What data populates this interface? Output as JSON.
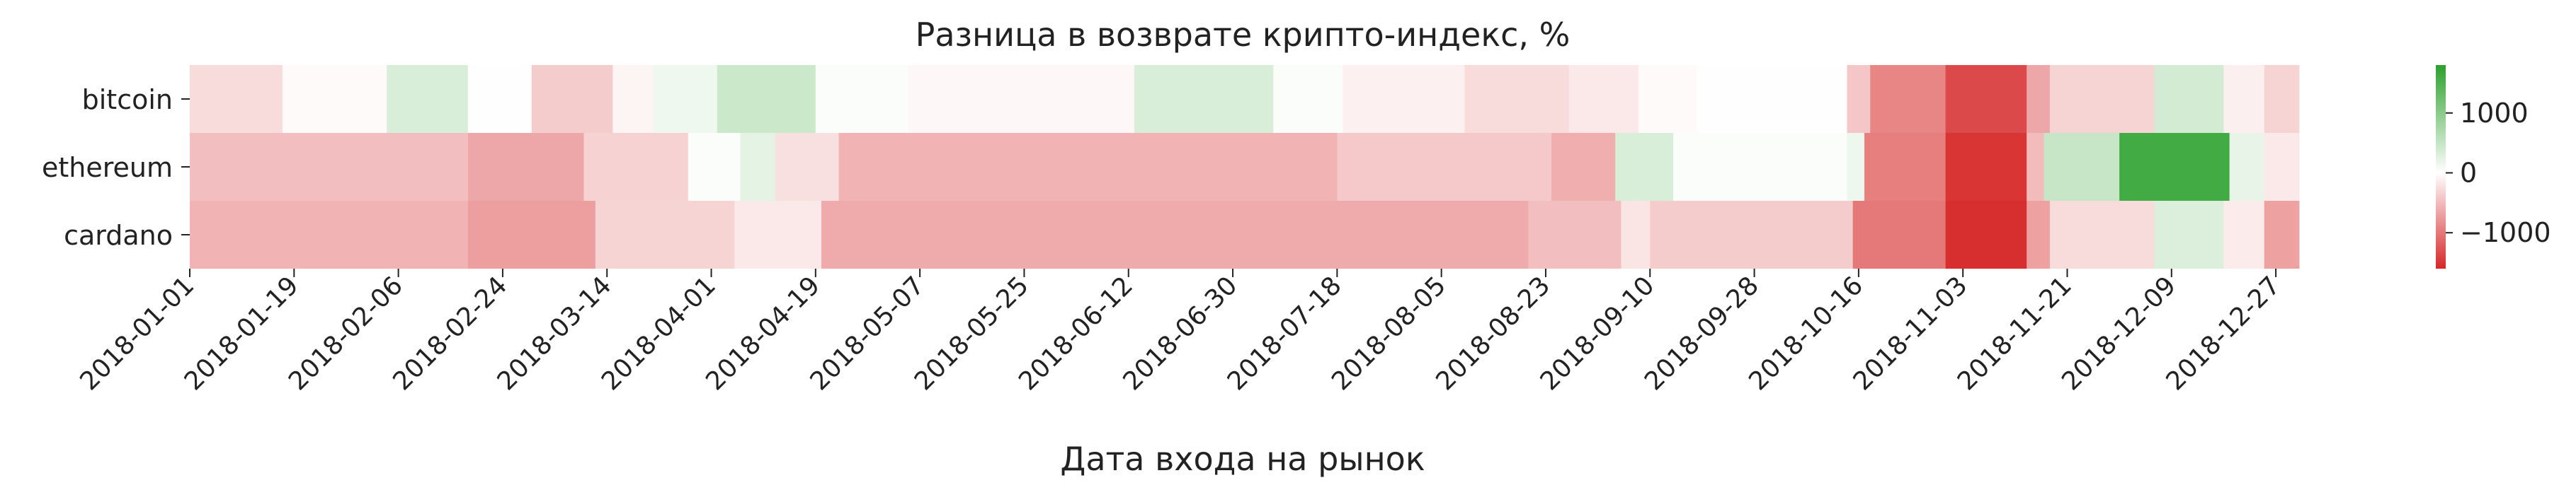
{
  "chart_data": {
    "type": "heatmap",
    "title": "Разница в возврате крипто-индекс, %",
    "xlabel": "Дата входа на рынок",
    "ylabel": "",
    "rows": [
      "bitcoin",
      "ethereum",
      "cardano"
    ],
    "x_tick_labels": [
      "2018-01-01",
      "2018-01-19",
      "2018-02-06",
      "2018-02-24",
      "2018-03-14",
      "2018-04-01",
      "2018-04-19",
      "2018-05-07",
      "2018-05-25",
      "2018-06-12",
      "2018-06-30",
      "2018-07-18",
      "2018-08-05",
      "2018-08-23",
      "2018-09-10",
      "2018-09-28",
      "2018-10-16",
      "2018-11-03",
      "2018-11-21",
      "2018-12-09",
      "2018-12-27"
    ],
    "x_start": "2018-01-01",
    "x_end": "2018-12-31",
    "colorbar": {
      "ticks": [
        1000,
        0,
        -1000
      ],
      "range": [
        -1600,
        1800
      ],
      "position": "right"
    },
    "colors": {
      "negative": "#d62728",
      "neutral": "#ffffff",
      "positive": "#2ca02c"
    },
    "segments": {
      "bitcoin": [
        [
          "2018-01-01",
          "2018-01-17",
          -260
        ],
        [
          "2018-01-17",
          "2018-02-04",
          -40
        ],
        [
          "2018-02-04",
          "2018-02-18",
          330
        ],
        [
          "2018-02-18",
          "2018-03-01",
          10
        ],
        [
          "2018-03-01",
          "2018-03-15",
          -380
        ],
        [
          "2018-03-15",
          "2018-03-22",
          -80
        ],
        [
          "2018-03-22",
          "2018-04-02",
          140
        ],
        [
          "2018-04-02",
          "2018-04-19",
          440
        ],
        [
          "2018-04-19",
          "2018-05-05",
          40
        ],
        [
          "2018-05-05",
          "2018-06-13",
          -60
        ],
        [
          "2018-06-13",
          "2018-07-07",
          330
        ],
        [
          "2018-07-07",
          "2018-07-19",
          40
        ],
        [
          "2018-07-19",
          "2018-08-09",
          -110
        ],
        [
          "2018-08-09",
          "2018-08-27",
          -260
        ],
        [
          "2018-08-27",
          "2018-09-08",
          -170
        ],
        [
          "2018-09-08",
          "2018-09-18",
          -40
        ],
        [
          "2018-09-18",
          "2018-10-14",
          20
        ],
        [
          "2018-10-14",
          "2018-10-18",
          -420
        ],
        [
          "2018-10-18",
          "2018-10-31",
          -900
        ],
        [
          "2018-10-31",
          "2018-11-14",
          -1350
        ],
        [
          "2018-11-14",
          "2018-11-18",
          -650
        ],
        [
          "2018-11-18",
          "2018-12-06",
          -320
        ],
        [
          "2018-12-06",
          "2018-12-18",
          380
        ],
        [
          "2018-12-18",
          "2018-12-25",
          -120
        ],
        [
          "2018-12-25",
          "2018-12-31",
          -320
        ]
      ],
      "ethereum": [
        [
          "2018-01-01",
          "2018-02-18",
          -480
        ],
        [
          "2018-02-18",
          "2018-03-10",
          -650
        ],
        [
          "2018-03-10",
          "2018-03-28",
          -330
        ],
        [
          "2018-03-28",
          "2018-04-06",
          30
        ],
        [
          "2018-04-06",
          "2018-04-12",
          230
        ],
        [
          "2018-04-12",
          "2018-04-23",
          -230
        ],
        [
          "2018-04-23",
          "2018-07-18",
          -560
        ],
        [
          "2018-07-18",
          "2018-08-24",
          -400
        ],
        [
          "2018-08-24",
          "2018-09-04",
          -600
        ],
        [
          "2018-09-04",
          "2018-09-14",
          330
        ],
        [
          "2018-09-14",
          "2018-10-14",
          40
        ],
        [
          "2018-10-14",
          "2018-10-17",
          150
        ],
        [
          "2018-10-17",
          "2018-10-31",
          -950
        ],
        [
          "2018-10-31",
          "2018-11-14",
          -1500
        ],
        [
          "2018-11-14",
          "2018-11-17",
          -500
        ],
        [
          "2018-11-17",
          "2018-11-30",
          480
        ],
        [
          "2018-11-30",
          "2018-12-19",
          1600
        ],
        [
          "2018-12-19",
          "2018-12-25",
          200
        ],
        [
          "2018-12-25",
          "2018-12-31",
          -160
        ]
      ],
      "cardano": [
        [
          "2018-01-01",
          "2018-02-18",
          -560
        ],
        [
          "2018-02-18",
          "2018-03-12",
          -720
        ],
        [
          "2018-03-12",
          "2018-04-05",
          -320
        ],
        [
          "2018-04-05",
          "2018-04-20",
          -170
        ],
        [
          "2018-04-20",
          "2018-08-20",
          -620
        ],
        [
          "2018-08-20",
          "2018-09-05",
          -480
        ],
        [
          "2018-09-05",
          "2018-09-10",
          -200
        ],
        [
          "2018-09-10",
          "2018-10-15",
          -380
        ],
        [
          "2018-10-15",
          "2018-10-31",
          -1000
        ],
        [
          "2018-10-31",
          "2018-11-14",
          -1550
        ],
        [
          "2018-11-14",
          "2018-11-18",
          -700
        ],
        [
          "2018-11-18",
          "2018-12-06",
          -260
        ],
        [
          "2018-12-06",
          "2018-12-18",
          300
        ],
        [
          "2018-12-18",
          "2018-12-25",
          -150
        ],
        [
          "2018-12-25",
          "2018-12-31",
          -700
        ]
      ]
    }
  }
}
